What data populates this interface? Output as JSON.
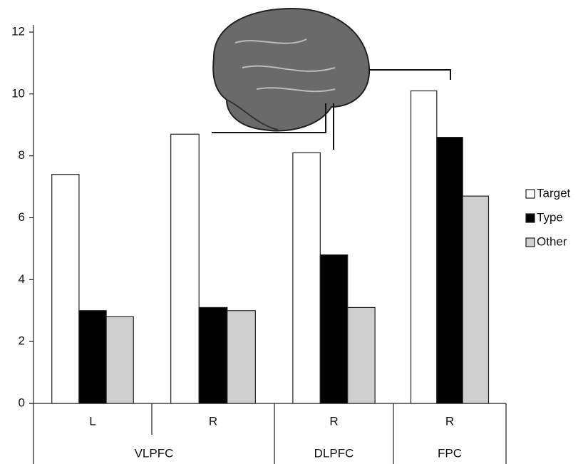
{
  "chart_data": {
    "type": "bar",
    "groups": [
      {
        "name": "VLPFC",
        "categories": [
          "L",
          "R"
        ]
      },
      {
        "name": "DLPFC",
        "categories": [
          "R"
        ]
      },
      {
        "name": "FPC",
        "categories": [
          "R"
        ]
      }
    ],
    "series": [
      {
        "name": "Target",
        "color": "#ffffff",
        "values": [
          7.4,
          8.7,
          8.1,
          10.1
        ]
      },
      {
        "name": "Type",
        "color": "#000000",
        "values": [
          3.0,
          3.1,
          4.8,
          8.6
        ]
      },
      {
        "name": "Other",
        "color": "#cfcfcf",
        "values": [
          2.8,
          3.0,
          3.1,
          6.7
        ]
      }
    ],
    "ylim": [
      0,
      12
    ],
    "yticks": [
      0,
      2,
      4,
      6,
      8,
      10,
      12
    ],
    "grid": false,
    "legend": "right"
  }
}
